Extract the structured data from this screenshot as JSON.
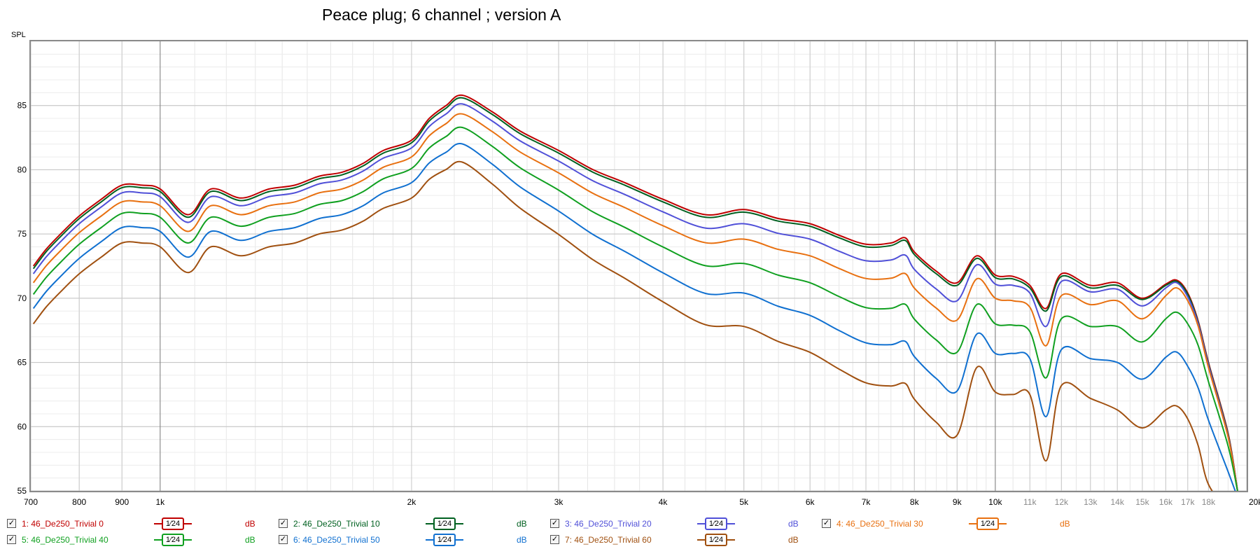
{
  "chart_data": {
    "type": "line",
    "title": "Peace plug; 6 channel ; version A",
    "ylabel": "SPL",
    "xlabel": "",
    "xscale": "log",
    "xlim": [
      700,
      20000
    ],
    "ylim": [
      55,
      90
    ],
    "y_ticks": [
      55,
      60,
      65,
      70,
      75,
      80,
      85
    ],
    "x_ticks": [
      {
        "v": 700,
        "label": "700"
      },
      {
        "v": 800,
        "label": "800"
      },
      {
        "v": 900,
        "label": "900"
      },
      {
        "v": 1000,
        "label": "1k"
      },
      {
        "v": 2000,
        "label": "2k"
      },
      {
        "v": 3000,
        "label": "3k"
      },
      {
        "v": 4000,
        "label": "4k"
      },
      {
        "v": 5000,
        "label": "5k"
      },
      {
        "v": 6000,
        "label": "6k"
      },
      {
        "v": 7000,
        "label": "7k"
      },
      {
        "v": 8000,
        "label": "8k"
      },
      {
        "v": 9000,
        "label": "9k"
      },
      {
        "v": 10000,
        "label": "10k"
      },
      {
        "v": 11000,
        "label": "11k",
        "muted": true
      },
      {
        "v": 12000,
        "label": "12k",
        "muted": true
      },
      {
        "v": 13000,
        "label": "13k",
        "muted": true
      },
      {
        "v": 14000,
        "label": "14k",
        "muted": true
      },
      {
        "v": 15000,
        "label": "15k",
        "muted": true
      },
      {
        "v": 16000,
        "label": "16k",
        "muted": true
      },
      {
        "v": 17000,
        "label": "17k",
        "muted": true
      },
      {
        "v": 18000,
        "label": "18k",
        "muted": true
      },
      {
        "v": 20000,
        "label": "20kHz"
      }
    ],
    "grid": true,
    "base_x": [
      705,
      730,
      760,
      800,
      850,
      900,
      950,
      1000,
      1080,
      1150,
      1250,
      1350,
      1450,
      1550,
      1650,
      1750,
      1850,
      2000,
      2100,
      2200,
      2300,
      2500,
      2700,
      3000,
      3300,
      3600,
      4000,
      4500,
      5000,
      5500,
      6000,
      6500,
      7000,
      7500,
      7800,
      8000,
      8500,
      9000,
      9500,
      10000,
      10500,
      11000,
      11500,
      12000,
      13000,
      14000,
      15000,
      16000,
      16500,
      17000,
      17500,
      18000,
      19000,
      19500
    ],
    "base_y": [
      72.5,
      73.8,
      75.0,
      76.4,
      77.7,
      78.8,
      78.8,
      78.5,
      76.5,
      78.5,
      77.8,
      78.5,
      78.8,
      79.5,
      79.8,
      80.5,
      81.5,
      82.3,
      84.0,
      85.0,
      85.8,
      84.5,
      83.0,
      81.5,
      80.0,
      79.0,
      77.7,
      76.5,
      76.9,
      76.2,
      75.8,
      74.9,
      74.2,
      74.3,
      74.7,
      73.6,
      72.1,
      71.2,
      70.1,
      69.6,
      69.5,
      69.3,
      69.2,
      69.0,
      68.8,
      68.6,
      68.3,
      68.9,
      68.8,
      68.2,
      66.0,
      63.0,
      58.0,
      54.0
    ],
    "series": [
      {
        "name": "1: 46_De250_Trivial 0",
        "color": "#c00000",
        "offset": 0.0,
        "tilt": 0.0,
        "tilt_ref": 5000,
        "y_override": [
          [
            9500,
            73.3
          ],
          [
            10000,
            71.8
          ],
          [
            10500,
            71.7
          ],
          [
            11000,
            71.0
          ],
          [
            12000,
            71.9
          ],
          [
            13000,
            71.0
          ],
          [
            14000,
            71.2
          ],
          [
            15000,
            70.0
          ],
          [
            16000,
            71.1
          ],
          [
            16500,
            71.4
          ],
          [
            17000,
            70.4
          ],
          [
            17500,
            68.2
          ],
          [
            18000,
            65.0
          ],
          [
            19000,
            59.5
          ],
          [
            19500,
            55.0
          ]
        ]
      },
      {
        "name": "2: 46_De250_Trivial 10",
        "color": "#006020",
        "offset": -0.2,
        "tilt": 0.0,
        "tilt_ref": 5000,
        "y_override": [
          [
            9500,
            73.1
          ],
          [
            10000,
            71.6
          ],
          [
            10500,
            71.5
          ],
          [
            11000,
            70.8
          ],
          [
            12000,
            71.7
          ],
          [
            13000,
            70.8
          ],
          [
            14000,
            71.0
          ],
          [
            15000,
            69.9
          ],
          [
            16000,
            71.0
          ],
          [
            16500,
            71.3
          ],
          [
            17000,
            70.3
          ],
          [
            17500,
            68.1
          ],
          [
            18000,
            64.9
          ],
          [
            19000,
            59.4
          ],
          [
            19500,
            55.0
          ]
        ]
      },
      {
        "name": "3: 46_De250_Trivial 20",
        "color": "#5050d8",
        "offset": -0.6,
        "tilt": -0.5,
        "tilt_ref": 5000,
        "y_override": [
          [
            9500,
            72.6
          ],
          [
            10000,
            71.1
          ],
          [
            10500,
            71.0
          ],
          [
            11000,
            70.4
          ],
          [
            12000,
            71.3
          ],
          [
            13000,
            70.5
          ],
          [
            14000,
            70.7
          ],
          [
            15000,
            69.4
          ],
          [
            16000,
            70.8
          ],
          [
            16500,
            71.2
          ],
          [
            17000,
            70.1
          ],
          [
            17500,
            68.0
          ],
          [
            18000,
            64.8
          ],
          [
            19000,
            59.3
          ],
          [
            19500,
            55.0
          ]
        ]
      },
      {
        "name": "4: 46_De250_Trivial 30",
        "color": "#e87010",
        "offset": -1.3,
        "tilt": -1.0,
        "tilt_ref": 5000,
        "y_override": [
          [
            9500,
            71.5
          ],
          [
            10000,
            70.0
          ],
          [
            10500,
            69.8
          ],
          [
            11000,
            69.3
          ],
          [
            12000,
            70.2
          ],
          [
            13000,
            69.5
          ],
          [
            14000,
            69.8
          ],
          [
            15000,
            68.4
          ],
          [
            16000,
            70.2
          ],
          [
            16500,
            70.8
          ],
          [
            17000,
            69.8
          ],
          [
            17500,
            67.8
          ],
          [
            18000,
            64.6
          ],
          [
            19000,
            59.2
          ],
          [
            19500,
            55.0
          ]
        ]
      },
      {
        "name": "5: 46_De250_Trivial 40",
        "color": "#10a020",
        "offset": -2.2,
        "tilt": -2.0,
        "tilt_ref": 5000,
        "y_override": [
          [
            9500,
            69.5
          ],
          [
            10000,
            68.0
          ],
          [
            10500,
            67.9
          ],
          [
            11000,
            67.4
          ],
          [
            12000,
            68.4
          ],
          [
            13000,
            67.8
          ],
          [
            14000,
            67.8
          ],
          [
            15000,
            66.6
          ],
          [
            16000,
            68.4
          ],
          [
            16500,
            68.9
          ],
          [
            17000,
            68.0
          ],
          [
            17500,
            66.3
          ],
          [
            18000,
            63.5
          ],
          [
            19000,
            58.5
          ],
          [
            19500,
            55.0
          ]
        ]
      },
      {
        "name": "6: 46_De250_Trivial 50",
        "color": "#1070d0",
        "offset": -3.3,
        "tilt": -3.2,
        "tilt_ref": 5000,
        "y_override": [
          [
            9500,
            67.2
          ],
          [
            10000,
            65.7
          ],
          [
            10500,
            65.7
          ],
          [
            11000,
            65.3
          ],
          [
            12000,
            66.0
          ],
          [
            13000,
            65.3
          ],
          [
            14000,
            65.0
          ],
          [
            15000,
            63.7
          ],
          [
            16000,
            65.4
          ],
          [
            16500,
            65.8
          ],
          [
            17000,
            64.7
          ],
          [
            17500,
            63.0
          ],
          [
            18000,
            60.5
          ],
          [
            19000,
            56.5
          ],
          [
            19500,
            54.5
          ]
        ]
      },
      {
        "name": "7: 46_De250_Trivial 60",
        "color": "#a05010",
        "offset": -4.5,
        "tilt": -4.6,
        "tilt_ref": 5000,
        "y_override": [
          [
            9500,
            64.6
          ],
          [
            10000,
            62.7
          ],
          [
            10500,
            62.5
          ],
          [
            11000,
            62.5
          ],
          [
            12000,
            63.2
          ],
          [
            13000,
            62.2
          ],
          [
            14000,
            61.3
          ],
          [
            15000,
            59.9
          ],
          [
            16000,
            61.3
          ],
          [
            16500,
            61.6
          ],
          [
            17000,
            60.6
          ],
          [
            17500,
            58.5
          ],
          [
            18000,
            55.5
          ],
          [
            19000,
            53.5
          ],
          [
            19500,
            52.5
          ]
        ]
      }
    ]
  },
  "legend": {
    "items": [
      {
        "label": "1: 46_De250_Trivial 0",
        "color": "#c00000",
        "smoothing": "1⁄24",
        "unit": "dB",
        "checked": "✓"
      },
      {
        "label": "2: 46_De250_Trivial 10",
        "color": "#006020",
        "smoothing": "1⁄24",
        "unit": "dB",
        "checked": "✓"
      },
      {
        "label": "3: 46_De250_Trivial 20",
        "color": "#5050d8",
        "smoothing": "1⁄24",
        "unit": "dB",
        "checked": "✓"
      },
      {
        "label": "4: 46_De250_Trivial 30",
        "color": "#e87010",
        "smoothing": "1⁄24",
        "unit": "dB",
        "checked": "✓"
      },
      {
        "label": "5: 46_De250_Trivial 40",
        "color": "#10a020",
        "smoothing": "1⁄24",
        "unit": "dB",
        "checked": "✓"
      },
      {
        "label": "6: 46_De250_Trivial 50",
        "color": "#1070d0",
        "smoothing": "1⁄24",
        "unit": "dB",
        "checked": "✓"
      },
      {
        "label": "7: 46_De250_Trivial 60",
        "color": "#a05010",
        "smoothing": "1⁄24",
        "unit": "dB",
        "checked": "✓"
      }
    ]
  }
}
